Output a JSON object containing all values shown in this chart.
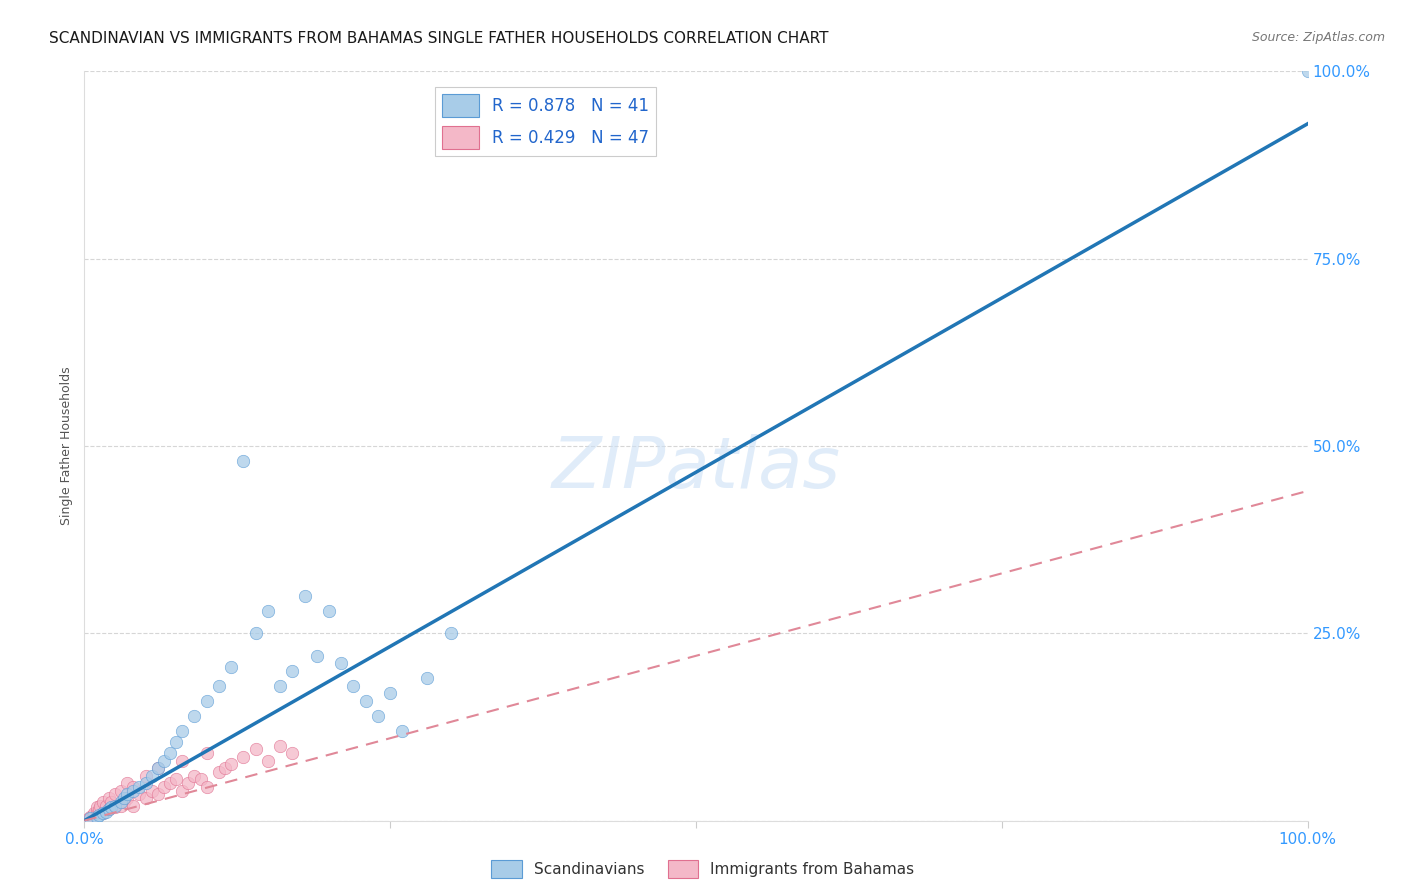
{
  "title": "SCANDINAVIAN VS IMMIGRANTS FROM BAHAMAS SINGLE FATHER HOUSEHOLDS CORRELATION CHART",
  "source": "Source: ZipAtlas.com",
  "ylabel": "Single Father Households",
  "watermark": "ZIPatlas",
  "xlim": [
    0,
    100
  ],
  "ylim": [
    0,
    100
  ],
  "xticklabels": [
    "0.0%",
    "",
    "",
    "",
    "100.0%"
  ],
  "blue_color": "#a8cce8",
  "blue_edge_color": "#5b9bd5",
  "pink_color": "#f4b8c8",
  "pink_edge_color": "#e07090",
  "blue_line_color": "#2176b5",
  "pink_line_color": "#e08898",
  "legend_r_blue": "R = 0.878",
  "legend_n_blue": "N = 41",
  "legend_r_pink": "R = 0.429",
  "legend_n_pink": "N = 47",
  "legend_label_blue": "Scandinavians",
  "legend_label_pink": "Immigrants from Bahamas",
  "blue_scatter_x": [
    0.5,
    1.0,
    1.2,
    1.5,
    1.8,
    2.0,
    2.2,
    2.5,
    3.0,
    3.2,
    3.5,
    4.0,
    4.5,
    5.0,
    5.5,
    6.0,
    6.5,
    7.0,
    7.5,
    8.0,
    9.0,
    10.0,
    11.0,
    12.0,
    13.0,
    14.0,
    15.0,
    16.0,
    17.0,
    18.0,
    19.0,
    20.0,
    21.0,
    22.0,
    23.0,
    24.0,
    25.0,
    26.0,
    28.0,
    30.0,
    100.0
  ],
  "blue_scatter_y": [
    0.3,
    0.5,
    0.8,
    1.0,
    1.2,
    1.5,
    1.8,
    2.0,
    2.5,
    3.0,
    3.5,
    4.0,
    4.5,
    5.0,
    6.0,
    7.0,
    8.0,
    9.0,
    10.5,
    12.0,
    14.0,
    16.0,
    18.0,
    20.5,
    48.0,
    25.0,
    28.0,
    18.0,
    20.0,
    30.0,
    22.0,
    28.0,
    21.0,
    18.0,
    16.0,
    14.0,
    17.0,
    12.0,
    19.0,
    25.0,
    100.0
  ],
  "pink_scatter_x": [
    0.3,
    0.5,
    0.7,
    0.8,
    1.0,
    1.0,
    1.2,
    1.3,
    1.5,
    1.5,
    1.8,
    2.0,
    2.0,
    2.2,
    2.5,
    2.5,
    3.0,
    3.0,
    3.2,
    3.5,
    3.5,
    4.0,
    4.0,
    4.5,
    5.0,
    5.0,
    5.5,
    6.0,
    6.0,
    6.5,
    7.0,
    7.5,
    8.0,
    8.0,
    8.5,
    9.0,
    9.5,
    10.0,
    10.0,
    11.0,
    11.5,
    12.0,
    13.0,
    14.0,
    15.0,
    16.0,
    17.0
  ],
  "pink_scatter_y": [
    0.2,
    0.5,
    0.8,
    1.0,
    1.2,
    1.8,
    1.5,
    2.0,
    1.0,
    2.5,
    2.0,
    1.5,
    3.0,
    2.5,
    1.8,
    3.5,
    2.0,
    4.0,
    2.5,
    3.0,
    5.0,
    2.0,
    4.5,
    3.5,
    3.0,
    6.0,
    4.0,
    3.5,
    7.0,
    4.5,
    5.0,
    5.5,
    4.0,
    8.0,
    5.0,
    6.0,
    5.5,
    4.5,
    9.0,
    6.5,
    7.0,
    7.5,
    8.5,
    9.5,
    8.0,
    10.0,
    9.0
  ],
  "blue_reg_x0": 0,
  "blue_reg_y0": 0,
  "blue_reg_x1": 100,
  "blue_reg_y1": 93,
  "pink_reg_x0": 0,
  "pink_reg_y0": 0,
  "pink_reg_x1": 100,
  "pink_reg_y1": 44,
  "background_color": "#ffffff",
  "grid_color": "#cccccc",
  "title_fontsize": 11,
  "axis_label_fontsize": 9,
  "tick_fontsize": 11,
  "tick_color": "#3399ff",
  "marker_size": 80
}
